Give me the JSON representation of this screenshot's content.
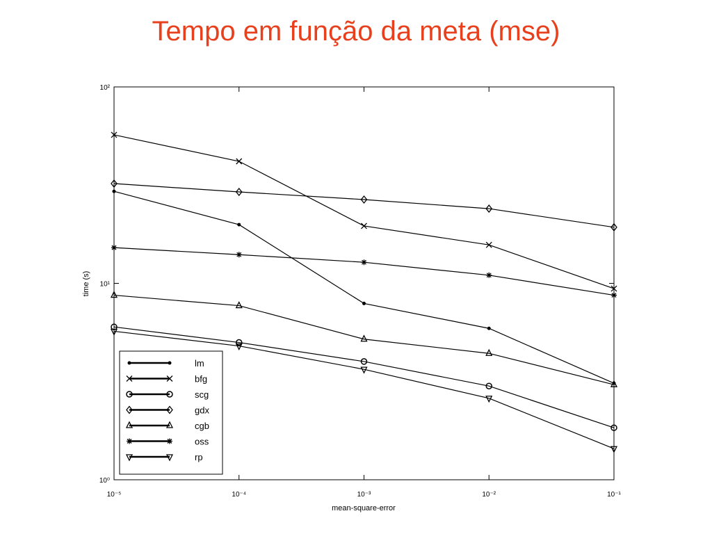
{
  "chart_data": {
    "type": "line",
    "title": "Tempo em função da meta (mse)",
    "x_label": "mean-square-error",
    "y_label": "time (s)",
    "x": [
      1e-05,
      0.0001,
      0.001,
      0.01,
      0.1
    ],
    "xlim": [
      1e-05,
      0.1
    ],
    "ylim": [
      1,
      100
    ],
    "xscale": "log",
    "yscale": "log",
    "xticks": [
      {
        "value": 1e-05,
        "label": "10⁻⁵"
      },
      {
        "value": 0.0001,
        "label": "10⁻⁴"
      },
      {
        "value": 0.001,
        "label": "10⁻³"
      },
      {
        "value": 0.01,
        "label": "10⁻²"
      },
      {
        "value": 0.1,
        "label": "10⁻¹"
      }
    ],
    "yticks": [
      {
        "value": 1,
        "label": "10⁰"
      },
      {
        "value": 10,
        "label": "10¹"
      },
      {
        "value": 100,
        "label": "10²"
      }
    ],
    "legend": "lower left",
    "series": [
      {
        "name": "lm",
        "color": "#000000",
        "marker": "dot",
        "values": [
          29.4,
          19.9,
          7.9,
          5.9,
          3.1
        ]
      },
      {
        "name": "bfg",
        "color": "#000000",
        "marker": "x",
        "values": [
          57,
          41.8,
          19.6,
          15.7,
          9.4
        ]
      },
      {
        "name": "scg",
        "color": "#000000",
        "marker": "circle",
        "values": [
          6.0,
          5.0,
          4.0,
          3.0,
          1.84
        ]
      },
      {
        "name": "gdx",
        "color": "#000000",
        "marker": "diamond",
        "values": [
          32.2,
          29.2,
          26.7,
          24,
          19.3
        ]
      },
      {
        "name": "cgb",
        "color": "#000000",
        "marker": "triangle",
        "values": [
          8.7,
          7.7,
          5.2,
          4.4,
          3.05
        ]
      },
      {
        "name": "oss",
        "color": "#000000",
        "marker": "star",
        "values": [
          15.2,
          14,
          12.8,
          11,
          8.7
        ]
      },
      {
        "name": "rp",
        "color": "#000000",
        "marker": "triangle-down",
        "values": [
          5.7,
          4.8,
          3.65,
          2.6,
          1.44
        ]
      }
    ]
  }
}
